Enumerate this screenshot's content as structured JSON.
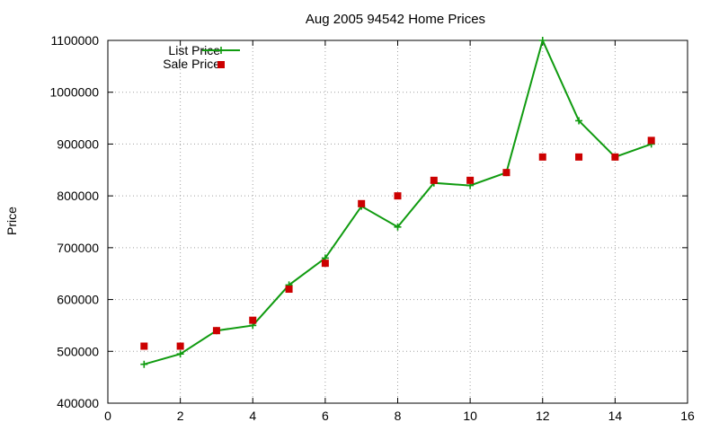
{
  "chart_data": {
    "type": "line",
    "title": "Aug 2005 94542 Home Prices",
    "xlabel": "",
    "ylabel": "Price",
    "xlim": [
      0,
      16
    ],
    "ylim": [
      400000,
      1100000
    ],
    "x_ticks": [
      0,
      2,
      4,
      6,
      8,
      10,
      12,
      14,
      16
    ],
    "y_ticks": [
      400000,
      500000,
      600000,
      700000,
      800000,
      900000,
      1000000,
      1100000
    ],
    "grid": true,
    "legend_position": "top-left",
    "series": [
      {
        "name": "List Price",
        "style": "line-with-plus-markers",
        "color": "#109b10",
        "x": [
          1,
          2,
          3,
          4,
          5,
          6,
          7,
          8,
          9,
          10,
          11,
          12,
          13,
          14,
          15
        ],
        "y": [
          475000,
          495000,
          540000,
          550000,
          628000,
          680000,
          780000,
          740000,
          825000,
          820000,
          845000,
          1100000,
          945000,
          875000,
          900000
        ]
      },
      {
        "name": "Sale Price",
        "style": "square-markers",
        "color": "#cc0000",
        "x": [
          1,
          2,
          3,
          4,
          5,
          6,
          7,
          8,
          9,
          10,
          11,
          12,
          13,
          14,
          15
        ],
        "y": [
          510000,
          510000,
          540000,
          560000,
          620000,
          670000,
          785000,
          800000,
          830000,
          830000,
          845000,
          875000,
          875000,
          875000,
          907000
        ]
      }
    ]
  }
}
